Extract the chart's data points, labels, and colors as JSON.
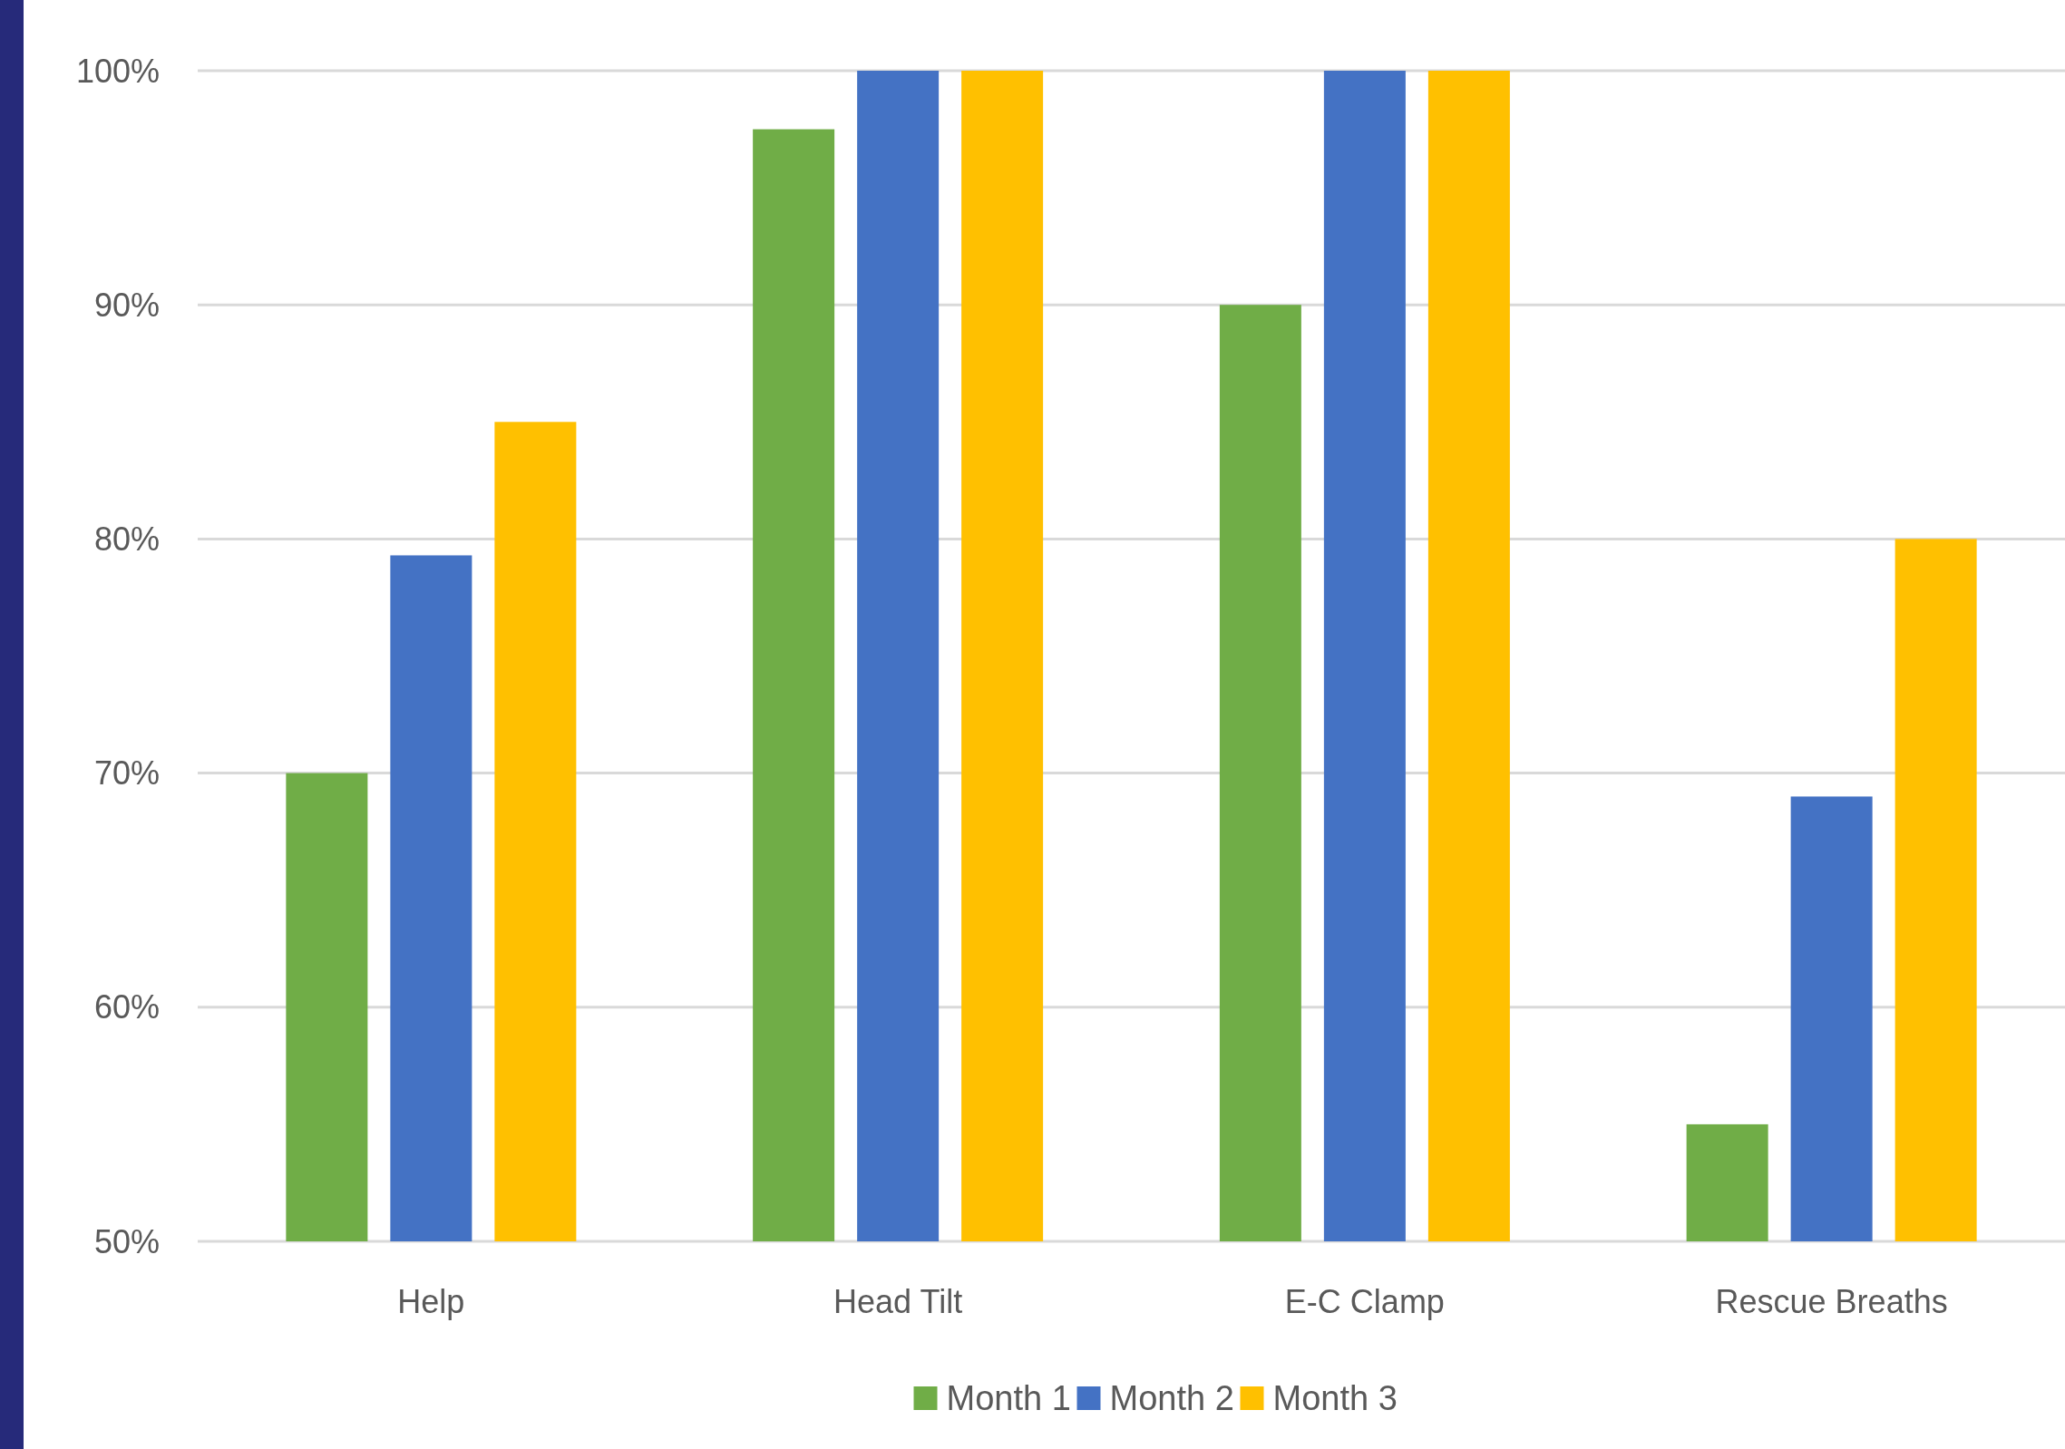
{
  "chart_data": {
    "type": "bar",
    "categories": [
      "Help",
      "Head Tilt",
      "E-C Clamp",
      "Rescue Breaths"
    ],
    "series": [
      {
        "name": "Month 1",
        "color": "#70ad47",
        "values": [
          70,
          97.5,
          90,
          55
        ]
      },
      {
        "name": "Month 2",
        "color": "#4472c4",
        "values": [
          79.3,
          100,
          100,
          69
        ]
      },
      {
        "name": "Month 3",
        "color": "#ffc000",
        "values": [
          85,
          100,
          100,
          80
        ]
      }
    ],
    "ylim": [
      50,
      100
    ],
    "yticks": [
      {
        "value": 50,
        "label": "50%"
      },
      {
        "value": 60,
        "label": "60%"
      },
      {
        "value": 70,
        "label": "70%"
      },
      {
        "value": 80,
        "label": "80%"
      },
      {
        "value": 90,
        "label": "90%"
      },
      {
        "value": 100,
        "label": "100%"
      }
    ],
    "grid": "y",
    "legend": "bottom"
  }
}
